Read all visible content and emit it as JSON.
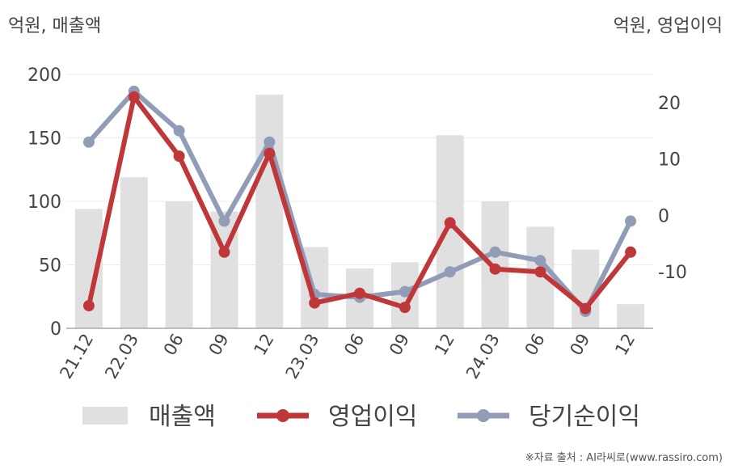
{
  "header": {
    "left_unit": "억원, 매출액",
    "right_unit": "억원, 영업이익"
  },
  "source": "※자료 출처 : AI라씨로(www.rassiro.com)",
  "colors": {
    "bar": "#e0e0e0",
    "operating": "#c0373a",
    "net": "#919cb6",
    "axis": "#aaaaaa",
    "grid": "#ececec"
  },
  "chart_data": {
    "type": "bar",
    "categories": [
      "21.12",
      "22.03",
      "06",
      "09",
      "12",
      "23.03",
      "06",
      "09",
      "12",
      "24.03",
      "06",
      "09",
      "12"
    ],
    "ylim_left": [
      0,
      200
    ],
    "ylim_right": [
      -20,
      25
    ],
    "yticks_left": [
      0,
      50,
      100,
      150,
      200
    ],
    "yticks_right": [
      -10,
      0,
      10,
      20
    ],
    "grid": true,
    "legend_position": "bottom",
    "series": [
      {
        "name": "매출액",
        "type": "bar",
        "axis": "left",
        "values": [
          94,
          119,
          100,
          92,
          184,
          64,
          47,
          52,
          152,
          100,
          80,
          62,
          19
        ]
      },
      {
        "name": "영업이익",
        "type": "line",
        "axis": "right",
        "values": [
          -16,
          21,
          10.5,
          -6.5,
          11,
          -15.5,
          -13.8,
          -16.3,
          -1.3,
          -9.5,
          -10,
          -16.5,
          -6.5
        ]
      },
      {
        "name": "당기순이익",
        "type": "line",
        "axis": "right",
        "values": [
          13,
          22,
          15,
          -1,
          13,
          -14,
          -14.5,
          -13.5,
          -10,
          -6.5,
          -8,
          -17,
          -1
        ]
      }
    ]
  }
}
